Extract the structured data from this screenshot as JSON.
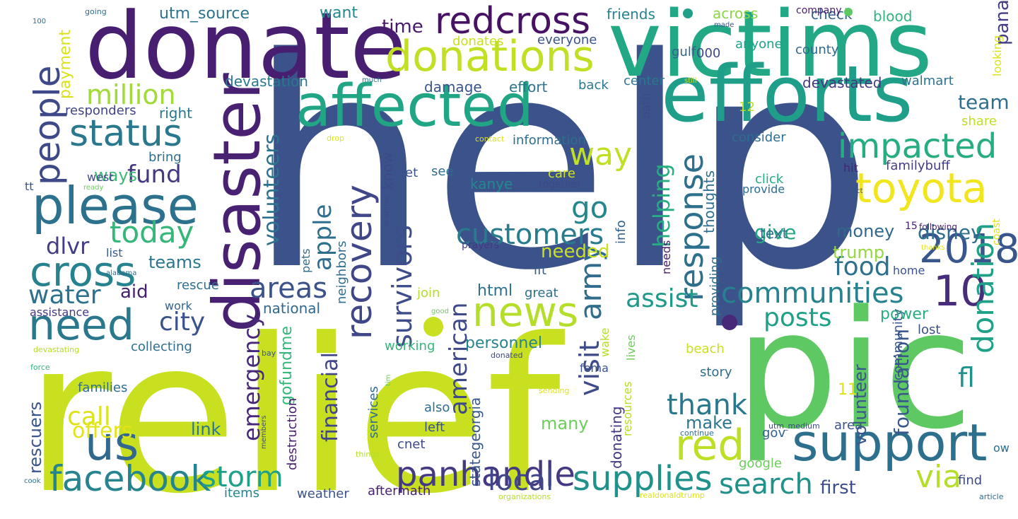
{
  "words": [
    {
      "text": "help",
      "color": "#3b528b",
      "orient": "h"
    },
    {
      "text": "relief",
      "color": "#c8e020",
      "orient": "h"
    },
    {
      "text": "pic",
      "color": "#5ec962",
      "orient": "h"
    },
    {
      "text": "victims",
      "color": "#22a884",
      "orient": "h"
    },
    {
      "text": "donate",
      "color": "#481f70",
      "orient": "h"
    },
    {
      "text": "disaster",
      "color": "#482173",
      "orient": "v"
    },
    {
      "text": "efforts",
      "color": "#1f9e89",
      "orient": "h"
    },
    {
      "text": "affected",
      "color": "#21a685",
      "orient": "h"
    },
    {
      "text": "support",
      "color": "#2d708e",
      "orient": "h"
    },
    {
      "text": "us",
      "color": "#31688e",
      "orient": "h"
    },
    {
      "text": "please",
      "color": "#2c728e",
      "orient": "h"
    },
    {
      "text": "donations",
      "color": "#c2df23",
      "orient": "h"
    },
    {
      "text": "news",
      "color": "#b5de2b",
      "orient": "h"
    },
    {
      "text": "red",
      "color": "#bddf26",
      "orient": "h"
    },
    {
      "text": "need",
      "color": "#2a788e",
      "orient": "h"
    },
    {
      "text": "redcross",
      "color": "#471164",
      "orient": "h"
    },
    {
      "text": "toyota",
      "color": "#f1e51d",
      "orient": "h"
    },
    {
      "text": "people",
      "color": "#3e4989",
      "orient": "v"
    },
    {
      "text": "cross",
      "color": "#26828e",
      "orient": "h"
    },
    {
      "text": "status",
      "color": "#2a788e",
      "orient": "h"
    },
    {
      "text": "2018",
      "color": "#39568c",
      "orient": "h"
    },
    {
      "text": "impacted",
      "color": "#26ad81",
      "orient": "h"
    },
    {
      "text": "facebook",
      "color": "#25848e",
      "orient": "h"
    },
    {
      "text": "panhandle",
      "color": "#443a83",
      "orient": "h"
    },
    {
      "text": "supplies",
      "color": "#21918c",
      "orient": "h"
    },
    {
      "text": "10",
      "color": "#472d7b",
      "orient": "h"
    },
    {
      "text": "recovery",
      "color": "#3f4788",
      "orient": "v"
    },
    {
      "text": "response",
      "color": "#2d708e",
      "orient": "v"
    },
    {
      "text": "customers",
      "color": "#287c8e",
      "orient": "h"
    },
    {
      "text": "communities",
      "color": "#26828e",
      "orient": "h"
    },
    {
      "text": "today",
      "color": "#35b779",
      "orient": "h"
    },
    {
      "text": "storm",
      "color": "#1fa088",
      "orient": "h"
    },
    {
      "text": "local",
      "color": "#3f4788",
      "orient": "h"
    },
    {
      "text": "search",
      "color": "#21918c",
      "orient": "h"
    },
    {
      "text": "million",
      "color": "#a2da37",
      "orient": "h"
    },
    {
      "text": "way",
      "color": "#c0df25",
      "orient": "h"
    },
    {
      "text": "donation",
      "color": "#1fa187",
      "orient": "v"
    },
    {
      "text": "areas",
      "color": "#3b528b",
      "orient": "h"
    },
    {
      "text": "go",
      "color": "#24878e",
      "orient": "h"
    },
    {
      "text": "via",
      "color": "#b5de2b",
      "orient": "h"
    },
    {
      "text": "thank",
      "color": "#2a788e",
      "orient": "h"
    },
    {
      "text": "army",
      "color": "#2f6c8e",
      "orient": "v"
    },
    {
      "text": "survivors",
      "color": "#3d4e8a",
      "orient": "v"
    },
    {
      "text": "visit",
      "color": "#3e4c8a",
      "orient": "v"
    },
    {
      "text": "assist",
      "color": "#1f9a8a",
      "orient": "h"
    },
    {
      "text": "city",
      "color": "#3b528b",
      "orient": "h"
    },
    {
      "text": "call",
      "color": "#dde318",
      "orient": "h"
    },
    {
      "text": "water",
      "color": "#2c728e",
      "orient": "h"
    },
    {
      "text": "fund",
      "color": "#453781",
      "orient": "h"
    },
    {
      "text": "food",
      "color": "#2c728e",
      "orient": "h"
    },
    {
      "text": "posts",
      "color": "#1fa187",
      "orient": "h"
    },
    {
      "text": "emergency",
      "color": "#482878",
      "orient": "v"
    },
    {
      "text": "american",
      "color": "#3e4989",
      "orient": "v"
    },
    {
      "text": "apple",
      "color": "#2e6e8e",
      "orient": "v"
    },
    {
      "text": "volunteers",
      "color": "#2c728e",
      "orient": "v"
    },
    {
      "text": "helping",
      "color": "#26ad81",
      "orient": "v"
    },
    {
      "text": "fl",
      "color": "#20928c",
      "orient": "h"
    },
    {
      "text": "dlvr",
      "color": "#433d84",
      "orient": "h"
    },
    {
      "text": "offers",
      "color": "#e2e418",
      "orient": "h"
    },
    {
      "text": "rescuers",
      "color": "#3a548c",
      "orient": "v"
    },
    {
      "text": "financial",
      "color": "#414487",
      "orient": "v"
    },
    {
      "text": "give",
      "color": "#22a884",
      "orient": "h"
    },
    {
      "text": "money",
      "color": "#31688e",
      "orient": "h"
    },
    {
      "text": "disney",
      "color": "#2e6f8e",
      "orient": "h"
    },
    {
      "text": "trump",
      "color": "#95d840",
      "orient": "h"
    },
    {
      "text": "html",
      "color": "#2c728e",
      "orient": "h"
    },
    {
      "text": "personnel",
      "color": "#26828e",
      "orient": "h"
    },
    {
      "text": "needed",
      "color": "#c8e020",
      "orient": "h"
    },
    {
      "text": "teams",
      "color": "#2a788e",
      "orient": "h"
    },
    {
      "text": "ways",
      "color": "#3cbb75",
      "orient": "h"
    },
    {
      "text": "aid",
      "color": "#482071",
      "orient": "h"
    },
    {
      "text": "link",
      "color": "#2a788e",
      "orient": "h"
    },
    {
      "text": "make",
      "color": "#2b758e",
      "orient": "h"
    },
    {
      "text": "many",
      "color": "#6ccd5a",
      "orient": "h"
    },
    {
      "text": "first",
      "color": "#3d4e8a",
      "orient": "h"
    },
    {
      "text": "foundation",
      "color": "#38588c",
      "orient": "v"
    },
    {
      "text": "volunteer",
      "color": "#3a548c",
      "orient": "v"
    },
    {
      "text": "community",
      "color": "#3a548c",
      "orient": "v"
    },
    {
      "text": "team",
      "color": "#2e6e8e",
      "orient": "h"
    },
    {
      "text": "panama",
      "color": "#433e85",
      "orient": "v"
    },
    {
      "text": "payment",
      "color": "#d8e219",
      "orient": "v"
    },
    {
      "text": "utm_source",
      "color": "#2b748e",
      "orient": "h"
    },
    {
      "text": "time",
      "color": "#48186a",
      "orient": "h"
    },
    {
      "text": "want",
      "color": "#23898e",
      "orient": "h"
    },
    {
      "text": "friends",
      "color": "#25838e",
      "orient": "h"
    },
    {
      "text": "across",
      "color": "#8bd646",
      "orient": "h"
    },
    {
      "text": "check",
      "color": "#33638d",
      "orient": "h"
    },
    {
      "text": "blood",
      "color": "#2fb47c",
      "orient": "h"
    },
    {
      "text": "company",
      "color": "#481b6d",
      "orient": "h"
    },
    {
      "text": "everyone",
      "color": "#3b528b",
      "orient": "h"
    },
    {
      "text": "donates",
      "color": "#c8e020",
      "orient": "h"
    },
    {
      "text": "gulf",
      "color": "#33638d",
      "orient": "h"
    },
    {
      "text": "000",
      "color": "#3e4989",
      "orient": "h"
    },
    {
      "text": "anyone",
      "color": "#1fa088",
      "orient": "h"
    },
    {
      "text": "county",
      "color": "#31688e",
      "orient": "h"
    },
    {
      "text": "devastation",
      "color": "#2a788e",
      "orient": "h"
    },
    {
      "text": "damage",
      "color": "#3a548c",
      "orient": "h"
    },
    {
      "text": "effort",
      "color": "#2b748e",
      "orient": "h"
    },
    {
      "text": "back",
      "color": "#2a788e",
      "orient": "h"
    },
    {
      "text": "center",
      "color": "#2a788e",
      "orient": "h"
    },
    {
      "text": "devastated",
      "color": "#453882",
      "orient": "h"
    },
    {
      "text": "walmart",
      "color": "#2c728e",
      "orient": "h"
    },
    {
      "text": "responders",
      "color": "#414487",
      "orient": "h"
    },
    {
      "text": "right",
      "color": "#2a788e",
      "orient": "h"
    },
    {
      "text": "bring",
      "color": "#2e6e8e",
      "orient": "h"
    },
    {
      "text": "information",
      "color": "#2e6e8e",
      "orient": "h"
    },
    {
      "text": "consider",
      "color": "#2e6e8e",
      "orient": "h"
    },
    {
      "text": "share",
      "color": "#bddf26",
      "orient": "h"
    },
    {
      "text": "12",
      "color": "#bddf26",
      "orient": "h"
    },
    {
      "text": "west",
      "color": "#3e4989",
      "orient": "h"
    },
    {
      "text": "care",
      "color": "#d0e11c",
      "orient": "h"
    },
    {
      "text": "let",
      "color": "#3b528b",
      "orient": "h"
    },
    {
      "text": "see",
      "color": "#2e6e8e",
      "orient": "h"
    },
    {
      "text": "kanye",
      "color": "#23888e",
      "orient": "h"
    },
    {
      "text": "together",
      "color": "#3e4989",
      "orient": "h"
    },
    {
      "text": "click",
      "color": "#25ab82",
      "orient": "h"
    },
    {
      "text": "provide",
      "color": "#2e6e8e",
      "orient": "h"
    },
    {
      "text": "hit",
      "color": "#482475",
      "orient": "h"
    },
    {
      "text": "familybuff",
      "color": "#433e85",
      "orient": "h"
    },
    {
      "text": "text",
      "color": "#2e6e8e",
      "orient": "h"
    },
    {
      "text": "15",
      "color": "#481f70",
      "orient": "h"
    },
    {
      "text": "following",
      "color": "#481f70",
      "orient": "h"
    },
    {
      "text": "list",
      "color": "#38598c",
      "orient": "h"
    },
    {
      "text": "prayers",
      "color": "#453781",
      "orient": "h"
    },
    {
      "text": "ift",
      "color": "#38588c",
      "orient": "h"
    },
    {
      "text": "home",
      "color": "#3b528b",
      "orient": "h"
    },
    {
      "text": "rescue",
      "color": "#2e6e8e",
      "orient": "h"
    },
    {
      "text": "assistance",
      "color": "#443983",
      "orient": "h"
    },
    {
      "text": "national",
      "color": "#31688e",
      "orient": "h"
    },
    {
      "text": "work",
      "color": "#33638d",
      "orient": "h"
    },
    {
      "text": "great",
      "color": "#2e6e8e",
      "orient": "h"
    },
    {
      "text": "join",
      "color": "#b5de2b",
      "orient": "h"
    },
    {
      "text": "power",
      "color": "#29af7f",
      "orient": "h"
    },
    {
      "text": "lost",
      "color": "#3b528b",
      "orient": "h"
    },
    {
      "text": "collecting",
      "color": "#2e6e8e",
      "orient": "h"
    },
    {
      "text": "working",
      "color": "#35b779",
      "orient": "h"
    },
    {
      "text": "beach",
      "color": "#c8e020",
      "orient": "h"
    },
    {
      "text": "fema",
      "color": "#3b528b",
      "orient": "h"
    },
    {
      "text": "story",
      "color": "#2e6e8e",
      "orient": "h"
    },
    {
      "text": "families",
      "color": "#2e6e8e",
      "orient": "h"
    },
    {
      "text": "also",
      "color": "#2e6e8e",
      "orient": "h"
    },
    {
      "text": "left",
      "color": "#3b528b",
      "orient": "h"
    },
    {
      "text": "cnet",
      "color": "#3e4989",
      "orient": "h"
    },
    {
      "text": "items",
      "color": "#25848e",
      "orient": "h"
    },
    {
      "text": "weather",
      "color": "#3b528b",
      "orient": "h"
    },
    {
      "text": "aftermath",
      "color": "#481f70",
      "orient": "h"
    },
    {
      "text": "gov",
      "color": "#33638d",
      "orient": "h"
    },
    {
      "text": "area",
      "color": "#3b528b",
      "orient": "h"
    },
    {
      "text": "google",
      "color": "#6ccd5a",
      "orient": "h"
    },
    {
      "text": "find",
      "color": "#3e4989",
      "orient": "h"
    },
    {
      "text": "ow",
      "color": "#2e6e8e",
      "orient": "h"
    },
    {
      "text": "11",
      "color": "#dde318",
      "orient": "h"
    },
    {
      "text": "tt",
      "color": "#3b528b",
      "orient": "h"
    },
    {
      "text": "100",
      "color": "#2e6e8e",
      "orient": "h"
    },
    {
      "text": "going",
      "color": "#2e6e8e",
      "orient": "h"
    },
    {
      "text": "made",
      "color": "#3b528b",
      "orient": "h"
    },
    {
      "text": "much",
      "color": "#2e6e8e",
      "orient": "h"
    },
    {
      "text": "still",
      "color": "#c8e020",
      "orient": "h"
    },
    {
      "text": "drop",
      "color": "#dde318",
      "orient": "h"
    },
    {
      "text": "contact",
      "color": "#dde318",
      "orient": "h"
    },
    {
      "text": "ready",
      "color": "#6ccd5a",
      "orient": "h"
    },
    {
      "text": "oct",
      "color": "#3b528b",
      "orient": "h"
    },
    {
      "text": "thanks",
      "color": "#dde318",
      "orient": "h"
    },
    {
      "text": "alabama",
      "color": "#2e6e8e",
      "orient": "h"
    },
    {
      "text": "good",
      "color": "#6ccd5a",
      "orient": "h"
    },
    {
      "text": "devastating",
      "color": "#b5de2b",
      "orient": "h"
    },
    {
      "text": "bay",
      "color": "#3b528b",
      "orient": "h"
    },
    {
      "text": "force",
      "color": "#35b779",
      "orient": "h"
    },
    {
      "text": "donated",
      "color": "#3e4989",
      "orient": "h"
    },
    {
      "text": "sending",
      "color": "#dde318",
      "orient": "h"
    },
    {
      "text": "continue",
      "color": "#2e6e8e",
      "orient": "h"
    },
    {
      "text": "utm_medium",
      "color": "#3e4989",
      "orient": "h"
    },
    {
      "text": "things",
      "color": "#b5de2b",
      "orient": "h"
    },
    {
      "text": "cook",
      "color": "#2e6e8e",
      "orient": "h"
    },
    {
      "text": "organizations",
      "color": "#b5de2b",
      "orient": "h"
    },
    {
      "text": "realdonaldtrump",
      "color": "#dde318",
      "orient": "h"
    },
    {
      "text": "article",
      "color": "#2e6e8e",
      "orient": "h"
    },
    {
      "text": "neighbors",
      "color": "#2e6e8e",
      "orient": "v"
    },
    {
      "text": "services",
      "color": "#2e6e8e",
      "orient": "v"
    },
    {
      "text": "stategeorgia",
      "color": "#38588c",
      "orient": "v"
    },
    {
      "text": "gofundme",
      "color": "#35b779",
      "orient": "v"
    },
    {
      "text": "donating",
      "color": "#453781",
      "orient": "v"
    },
    {
      "text": "know",
      "color": "#3e4989",
      "orient": "v"
    },
    {
      "text": "info",
      "color": "#33638d",
      "orient": "v"
    },
    {
      "text": "thoughts",
      "color": "#2e6e8e",
      "orient": "v"
    },
    {
      "text": "providing",
      "color": "#2e6e8e",
      "orient": "v"
    },
    {
      "text": "needs",
      "color": "#481f70",
      "orient": "v"
    },
    {
      "text": "path",
      "color": "#3e4989",
      "orient": "v"
    },
    {
      "text": "pets",
      "color": "#2e6e8e",
      "orient": "v"
    },
    {
      "text": "destruction",
      "color": "#481f70",
      "orient": "v"
    },
    {
      "text": "wake",
      "color": "#b5de2b",
      "orient": "v"
    },
    {
      "text": "lives",
      "color": "#6ccd5a",
      "orient": "v"
    },
    {
      "text": "resources",
      "color": "#b5de2b",
      "orient": "v"
    },
    {
      "text": "looking",
      "color": "#dde318",
      "orient": "v"
    },
    {
      "text": "coast",
      "color": "#dde318",
      "orient": "v"
    },
    {
      "text": "charities",
      "color": "#3e4989",
      "orient": "v"
    },
    {
      "text": "members",
      "color": "#3e4989",
      "orient": "v"
    },
    {
      "text": "tim",
      "color": "#6ccd5a",
      "orient": "v"
    }
  ]
}
